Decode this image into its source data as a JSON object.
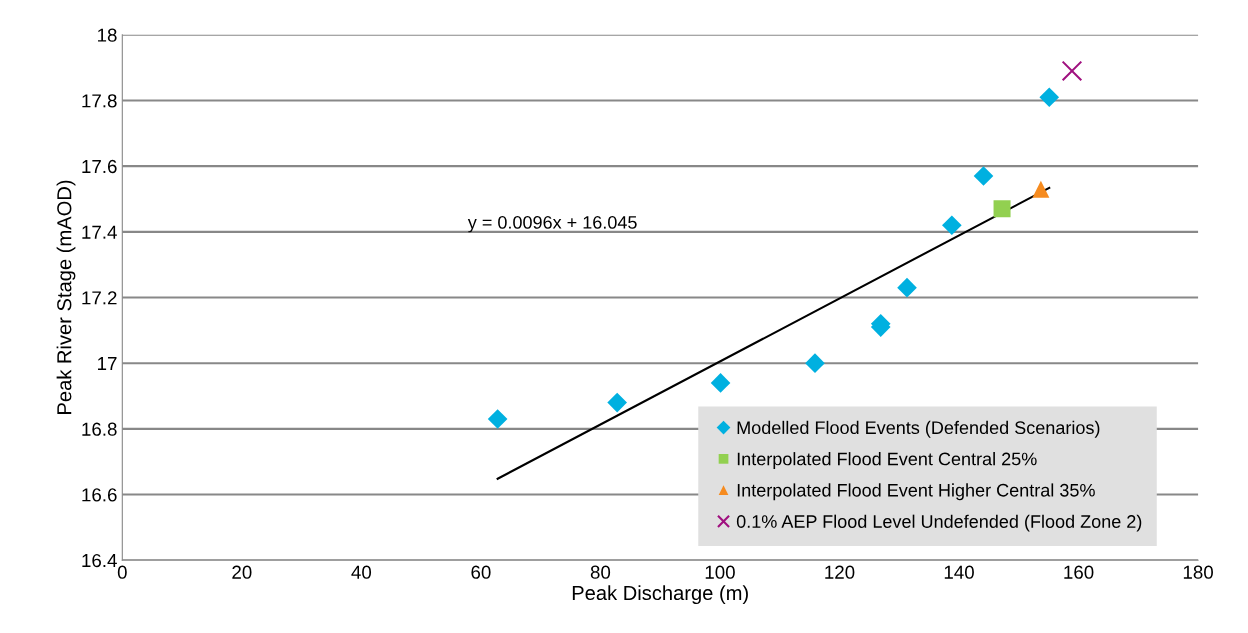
{
  "chart_data": {
    "type": "scatter",
    "xlabel": "Peak Discharge (m)",
    "ylabel": "Peak River Stage (mAOD)",
    "xlim": [
      0,
      180
    ],
    "xticks": [
      0,
      20,
      40,
      60,
      80,
      100,
      120,
      140,
      160,
      180
    ],
    "ylim": [
      16.4,
      18
    ],
    "yticks": [
      {
        "value": 16.4,
        "label": "16.4"
      },
      {
        "value": 16.6,
        "label": "16.6"
      },
      {
        "value": 16.8,
        "label": "16.8"
      },
      {
        "value": 17,
        "label": "17"
      },
      {
        "value": 17.2,
        "label": "17.2"
      },
      {
        "value": 17.4,
        "label": "17.4"
      },
      {
        "value": 17.6,
        "label": "17.6"
      },
      {
        "value": 17.8,
        "label": "17.8"
      },
      {
        "value": 18,
        "label": "18"
      }
    ],
    "grid": "y",
    "legend": "bottom right",
    "annotations": [
      "y = 0.0096x + 16.045"
    ],
    "series": [
      {
        "name": "Modelled Flood Events (Defended Scenarios)",
        "color": "#00b0e0",
        "marker": "diamond",
        "x": [
          62.8,
          82.8,
          100.1,
          115.9,
          126.9,
          126.9,
          131.3,
          138.8,
          144.1,
          155.1
        ],
        "values": [
          16.83,
          16.88,
          16.94,
          17.0,
          17.12,
          17.11,
          17.23,
          17.42,
          17.57,
          17.81
        ]
      },
      {
        "name": "Interpolated Flood Event Central 25%",
        "color": "#92d050",
        "marker": "square",
        "x": [
          147.2
        ],
        "values": [
          17.47
        ]
      },
      {
        "name": "Interpolated Flood Event Higher Central 35%",
        "color": "#f68b1f",
        "marker": "triangle",
        "x": [
          153.7
        ],
        "values": [
          17.53
        ]
      },
      {
        "name": "0.1% AEP Flood Level Undefended (Flood Zone 2)",
        "color": "#a0107f",
        "marker": "cross",
        "x": [
          158.9
        ],
        "values": [
          17.89
        ]
      },
      {
        "type": "line",
        "color": "#000000",
        "marker": "none",
        "x": [
          62.8,
          155.1
        ],
        "values": [
          16.648,
          17.534
        ]
      }
    ]
  }
}
